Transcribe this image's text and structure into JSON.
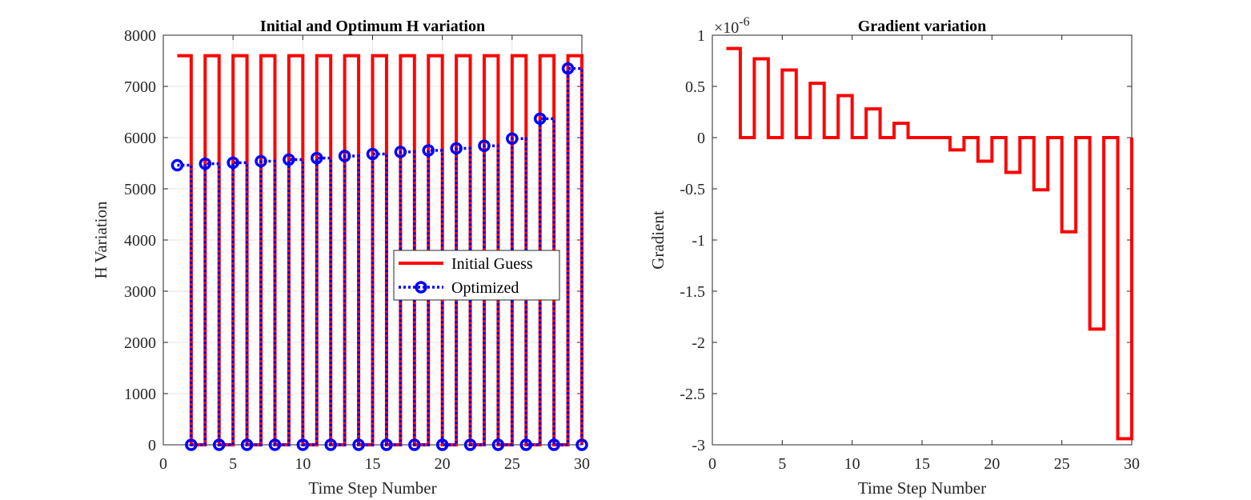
{
  "chart_data": [
    {
      "type": "line",
      "title": "Initial and Optimum H variation",
      "xlabel": "Time Step Number",
      "ylabel": "H Variation",
      "xlim": [
        0,
        30
      ],
      "ylim": [
        0,
        8000
      ],
      "xticks": [
        0,
        5,
        10,
        15,
        20,
        25,
        30
      ],
      "yticks": [
        0,
        1000,
        2000,
        3000,
        4000,
        5000,
        6000,
        7000,
        8000
      ],
      "grid": true,
      "legend": "center-right",
      "x": [
        1,
        2,
        3,
        4,
        5,
        6,
        7,
        8,
        9,
        10,
        11,
        12,
        13,
        14,
        15,
        16,
        17,
        18,
        19,
        20,
        21,
        22,
        23,
        24,
        25,
        26,
        27,
        28,
        29,
        30
      ],
      "series": [
        {
          "name": "Initial Guess",
          "style": "stairs",
          "color": "#ff0000",
          "values": [
            7600,
            0,
            7600,
            0,
            7600,
            0,
            7600,
            0,
            7600,
            0,
            7600,
            0,
            7600,
            0,
            7600,
            0,
            7600,
            0,
            7600,
            0,
            7600,
            0,
            7600,
            0,
            7600,
            0,
            7600,
            0,
            7600,
            0
          ]
        },
        {
          "name": "Optimized",
          "style": "stairs-dotted-circles",
          "color": "#0000ff",
          "values": [
            5460,
            0,
            5490,
            0,
            5510,
            0,
            5540,
            0,
            5570,
            0,
            5600,
            0,
            5640,
            0,
            5680,
            0,
            5720,
            0,
            5750,
            0,
            5790,
            0,
            5840,
            0,
            5980,
            0,
            6370,
            0,
            7350,
            0
          ]
        }
      ]
    },
    {
      "type": "line",
      "title": "Gradient variation",
      "xlabel": "Time Step Number",
      "ylabel": "Gradient",
      "exponent_label": "×10",
      "exponent_power": "-6",
      "xlim": [
        0,
        30
      ],
      "ylim": [
        -3,
        1
      ],
      "xticks": [
        0,
        5,
        10,
        15,
        20,
        25,
        30
      ],
      "yticks": [
        -3,
        -2.5,
        -2,
        -1.5,
        -1,
        -0.5,
        0,
        0.5,
        1
      ],
      "grid": false,
      "x": [
        1,
        2,
        3,
        4,
        5,
        6,
        7,
        8,
        9,
        10,
        11,
        12,
        13,
        14,
        15,
        16,
        17,
        18,
        19,
        20,
        21,
        22,
        23,
        24,
        25,
        26,
        27,
        28,
        29,
        30
      ],
      "series": [
        {
          "name": "",
          "style": "stairs",
          "color": "#ff0000",
          "values": [
            0.87,
            0,
            0.77,
            0,
            0.66,
            0,
            0.53,
            0,
            0.41,
            0,
            0.28,
            0,
            0.14,
            0,
            0,
            0,
            -0.12,
            0,
            -0.23,
            0,
            -0.34,
            0,
            -0.51,
            0,
            -0.92,
            0,
            -1.87,
            0,
            -2.94,
            0
          ]
        }
      ]
    }
  ]
}
